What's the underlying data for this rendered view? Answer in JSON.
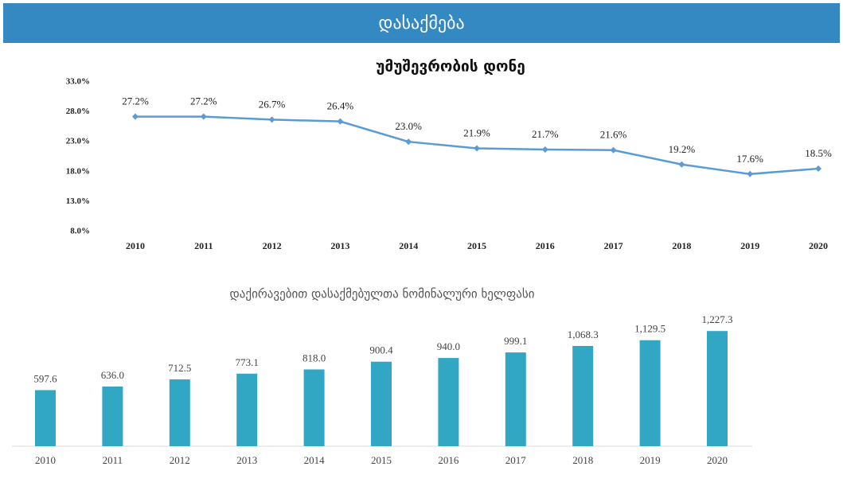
{
  "header": {
    "title": "დასაქმება"
  },
  "chart_data": [
    {
      "type": "line",
      "title": "უმუშევრობის დონე",
      "categories": [
        "2010",
        "2011",
        "2012",
        "2013",
        "2014",
        "2015",
        "2016",
        "2017",
        "2018",
        "2019",
        "2020"
      ],
      "values": [
        27.2,
        27.2,
        26.7,
        26.4,
        23.0,
        21.9,
        21.7,
        21.6,
        19.2,
        17.6,
        18.5
      ],
      "value_labels": [
        "27.2%",
        "27.2%",
        "26.7%",
        "26.4%",
        "23.0%",
        "21.9%",
        "21.7%",
        "21.6%",
        "19.2%",
        "17.6%",
        "18.5%"
      ],
      "color": "#5b9bd5",
      "ylim": [
        8,
        33
      ],
      "yticks": [
        {
          "value": 8,
          "label": "8.0%"
        },
        {
          "value": 13,
          "label": "13.0%"
        },
        {
          "value": 18,
          "label": "18.0%"
        },
        {
          "value": 23,
          "label": "23.0%"
        },
        {
          "value": 28,
          "label": "28.0%"
        },
        {
          "value": 33,
          "label": "33.0%"
        }
      ]
    },
    {
      "type": "bar",
      "title": "დაქირავებით დასაქმებულთა ნომინალური ხელფასი",
      "categories": [
        "2010",
        "2011",
        "2012",
        "2013",
        "2014",
        "2015",
        "2016",
        "2017",
        "2018",
        "2019",
        "2020"
      ],
      "values": [
        597.6,
        636.0,
        712.5,
        773.1,
        818.0,
        900.4,
        940.0,
        999.1,
        1068.3,
        1129.5,
        1227.3
      ],
      "value_labels": [
        "597.6",
        "636.0",
        "712.5",
        "773.1",
        "818.0",
        "900.4",
        "940.0",
        "999.1",
        "1,068.3",
        "1,129.5",
        "1,227.3"
      ],
      "color": "#31a7c4",
      "ylim": [
        0,
        1500
      ]
    }
  ]
}
